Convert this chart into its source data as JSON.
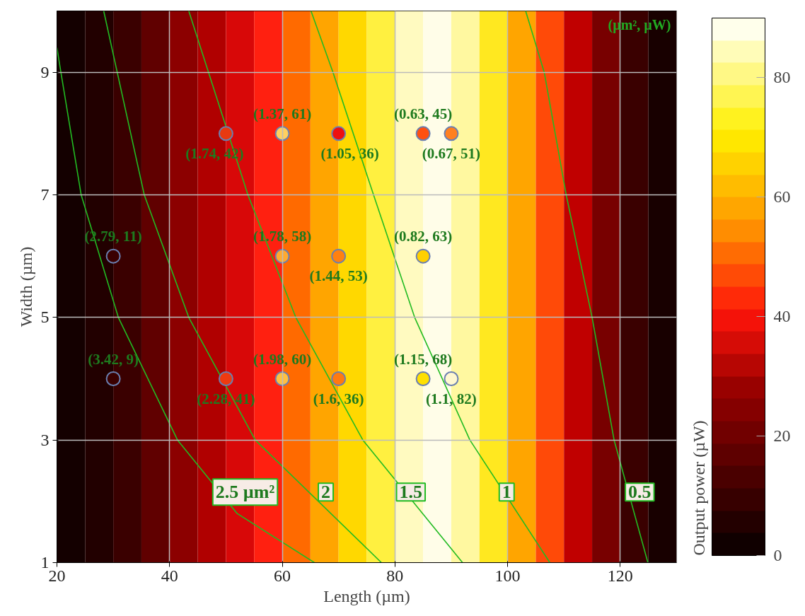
{
  "chart_data": {
    "type": "scatter",
    "xlabel": "Length (µm)",
    "ylabel": "Width (µm)",
    "clabel": "Output power (µW)",
    "xlim": [
      20,
      130
    ],
    "ylim": [
      1,
      10
    ],
    "xticks": [
      20,
      40,
      60,
      80,
      100,
      120
    ],
    "yticks": [
      1,
      3,
      5,
      7,
      9
    ],
    "grid": true,
    "clim": [
      0,
      90
    ],
    "cticks": [
      0,
      20,
      40,
      60,
      80
    ],
    "bands": [
      {
        "axis": "x",
        "from": 20,
        "to": 25,
        "color": "#140000"
      },
      {
        "axis": "x",
        "from": 25,
        "to": 30,
        "color": "#220000"
      },
      {
        "axis": "x",
        "from": 30,
        "to": 35,
        "color": "#3a0000"
      },
      {
        "axis": "x",
        "from": 35,
        "to": 40,
        "color": "#600000"
      },
      {
        "axis": "x",
        "from": 40,
        "to": 45,
        "color": "#8c0000"
      },
      {
        "axis": "x",
        "from": 45,
        "to": 50,
        "color": "#b00000"
      },
      {
        "axis": "x",
        "from": 50,
        "to": 55,
        "color": "#d80808"
      },
      {
        "axis": "x",
        "from": 55,
        "to": 60,
        "color": "#ff2010"
      },
      {
        "axis": "x",
        "from": 60,
        "to": 65,
        "color": "#ff6a00"
      },
      {
        "axis": "x",
        "from": 65,
        "to": 70,
        "color": "#ffa500"
      },
      {
        "axis": "x",
        "from": 70,
        "to": 75,
        "color": "#ffd800"
      },
      {
        "axis": "x",
        "from": 75,
        "to": 80,
        "color": "#fff040"
      },
      {
        "axis": "x",
        "from": 80,
        "to": 85,
        "color": "#fffac0"
      },
      {
        "axis": "x",
        "from": 85,
        "to": 90,
        "color": "#fffde8"
      },
      {
        "axis": "x",
        "from": 90,
        "to": 95,
        "color": "#fff8a0"
      },
      {
        "axis": "x",
        "from": 95,
        "to": 100,
        "color": "#ffe820"
      },
      {
        "axis": "x",
        "from": 100,
        "to": 105,
        "color": "#ffa500"
      },
      {
        "axis": "x",
        "from": 105,
        "to": 110,
        "color": "#ff4a08"
      },
      {
        "axis": "x",
        "from": 110,
        "to": 115,
        "color": "#c00000"
      },
      {
        "axis": "x",
        "from": 115,
        "to": 120,
        "color": "#780000"
      },
      {
        "axis": "x",
        "from": 120,
        "to": 125,
        "color": "#3a0000"
      },
      {
        "axis": "x",
        "from": 125,
        "to": 130,
        "color": "#180000"
      }
    ],
    "series": [
      {
        "type": "line",
        "name": "2.5 µm²",
        "color": "#22bb22",
        "x": [
          20,
          20.7,
          24.3,
          30.9,
          41.4,
          52,
          65.7
        ],
        "values": [
          9.4,
          9,
          7,
          5,
          3,
          1.8,
          1
        ]
      },
      {
        "type": "line",
        "name": "2",
        "color": "#22bb22",
        "x": [
          28.3,
          35.5,
          43.4,
          55.2,
          77.6
        ],
        "values": [
          10,
          7,
          5,
          3,
          1
        ]
      },
      {
        "type": "line",
        "name": "1.5",
        "color": "#22bb22",
        "x": [
          43.4,
          53.9,
          62.4,
          74.3,
          92
        ],
        "values": [
          10,
          7,
          5,
          3,
          1
        ]
      },
      {
        "type": "line",
        "name": "1",
        "color": "#22bb22",
        "x": [
          65.1,
          69,
          76.2,
          83.5,
          93.3,
          107.5
        ],
        "values": [
          10,
          9,
          7,
          5,
          3,
          1
        ]
      },
      {
        "type": "line",
        "name": "0.5",
        "color": "#22bb22",
        "x": [
          103.2,
          106.5,
          110.4,
          115,
          118.9,
          124.9
        ],
        "values": [
          10,
          9,
          7,
          5,
          3,
          1
        ]
      },
      {
        "marker": "circle",
        "x": [
          30,
          30,
          50,
          50,
          60,
          60,
          60,
          70,
          70,
          70,
          85,
          85,
          85,
          90,
          90
        ],
        "values": [
          4,
          6,
          4,
          8,
          4,
          6,
          8,
          4,
          6,
          8,
          4,
          6,
          8,
          4,
          8
        ],
        "colors": [
          "#3a0000",
          "#3a0000",
          "#ee3a10",
          "#e83a10",
          "#ffc040",
          "#ffaa30",
          "#ffd060",
          "#ff7a10",
          "#ff8010",
          "#ee1010",
          "#ffe000",
          "#ffd000",
          "#ff5010",
          "#fff8d0",
          "#ff8020"
        ]
      }
    ],
    "annotations": [
      {
        "text": "(3.42, 9)",
        "x": 30,
        "y": 4
      },
      {
        "text": "(2.79, 11)",
        "x": 30,
        "y": 6
      },
      {
        "text": "(2.28, 41)",
        "x": 50,
        "y": 4
      },
      {
        "text": "(1.74, 42)",
        "x": 50,
        "y": 8
      },
      {
        "text": "(1.98, 60)",
        "x": 60,
        "y": 4
      },
      {
        "text": "(1.78, 58)",
        "x": 60,
        "y": 6
      },
      {
        "text": "(1.37, 61)",
        "x": 60,
        "y": 8
      },
      {
        "text": "(1.6, 36)",
        "x": 70,
        "y": 4
      },
      {
        "text": "(1.44, 53)",
        "x": 70,
        "y": 6
      },
      {
        "text": "(1.05, 36)",
        "x": 70,
        "y": 8
      },
      {
        "text": "(1.15, 68)",
        "x": 85,
        "y": 4
      },
      {
        "text": "(0.82, 63)",
        "x": 85,
        "y": 6
      },
      {
        "text": "(0.63, 45)",
        "x": 85,
        "y": 8
      },
      {
        "text": "(1.1, 82)",
        "x": 90,
        "y": 4
      },
      {
        "text": "(0.67, 51)",
        "x": 90,
        "y": 8
      },
      "(µm², µW)"
    ]
  }
}
